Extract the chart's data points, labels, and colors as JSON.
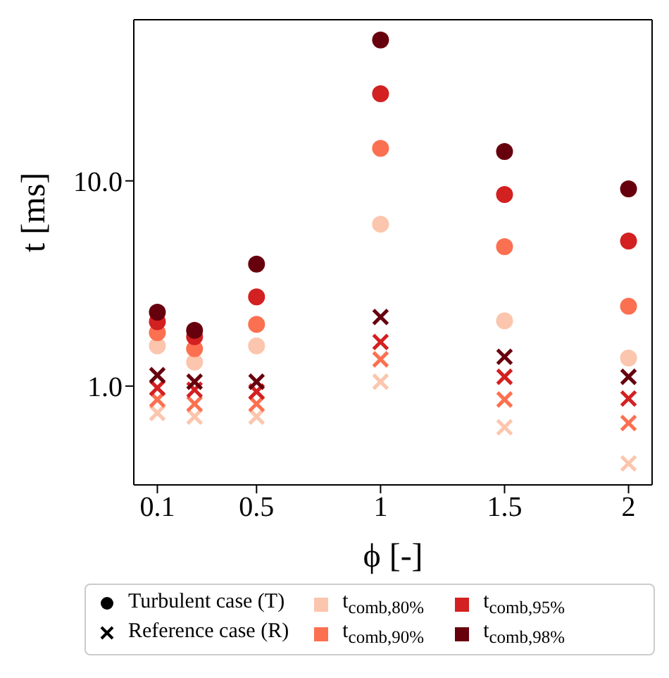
{
  "chart_data": {
    "type": "scatter",
    "xlabel": "ϕ [-]",
    "ylabel": "t [ms]",
    "log": "y",
    "x": [
      0.1,
      0.25,
      0.5,
      1,
      1.5,
      2
    ],
    "xlim": [
      0.005,
      2.095
    ],
    "xticks": [
      0.1,
      0.5,
      1,
      1.5,
      2
    ],
    "ylim": [
      0.33,
      61
    ],
    "yticks": [
      {
        "value": 1,
        "label": "1.0"
      },
      {
        "value": 10,
        "label": "10.0"
      }
    ],
    "legend": "bottom",
    "annotations": [
      "Turbulent case (T)",
      "Reference case (R)"
    ],
    "series": [
      {
        "name": "t$_{comb,80%}$",
        "color": "#fcc5ad",
        "marker": "circle",
        "values": [
          1.57,
          1.31,
          1.57,
          6.15,
          2.08,
          1.37
        ]
      },
      {
        "name": "t$_{comb,90%}$",
        "color": "#fb7050",
        "marker": "circle",
        "values": [
          1.82,
          1.52,
          2.0,
          14.4,
          4.78,
          2.45
        ]
      },
      {
        "name": "t$_{comb,95%}$",
        "color": "#d32020",
        "marker": "circle",
        "values": [
          2.06,
          1.74,
          2.72,
          26.6,
          8.58,
          5.09
        ]
      },
      {
        "name": "t$_{comb,98%}$",
        "color": "#67000d",
        "marker": "circle",
        "values": [
          2.29,
          1.87,
          3.93,
          48.6,
          13.9,
          9.14
        ]
      },
      {
        "color": "#fcc5ad",
        "marker": "cross",
        "values": [
          0.74,
          0.71,
          0.71,
          1.05,
          0.63,
          0.42
        ]
      },
      {
        "color": "#fb7050",
        "marker": "cross",
        "values": [
          0.86,
          0.82,
          0.82,
          1.35,
          0.86,
          0.66
        ]
      },
      {
        "color": "#d32020",
        "marker": "cross",
        "values": [
          0.98,
          0.96,
          0.94,
          1.64,
          1.11,
          0.87
        ]
      },
      {
        "color": "#67000d",
        "marker": "cross",
        "values": [
          1.13,
          1.05,
          1.05,
          2.17,
          1.39,
          1.11
        ]
      }
    ]
  }
}
